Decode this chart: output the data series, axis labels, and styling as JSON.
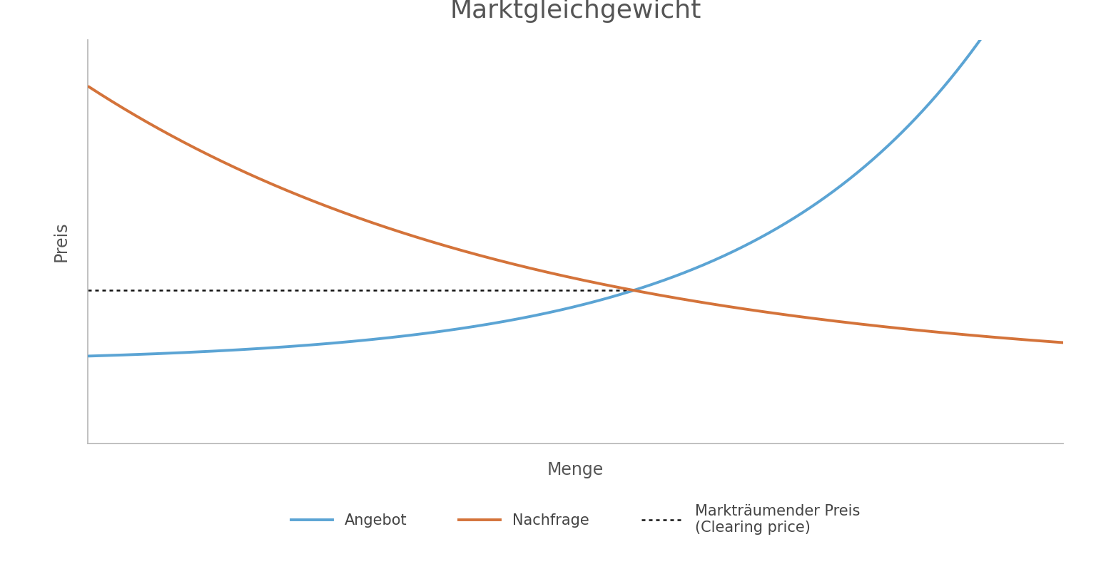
{
  "title": "Marktgleichgewicht",
  "xlabel": "Menge",
  "ylabel": "Preis",
  "supply_color": "#5BA4D4",
  "demand_color": "#D4733A",
  "clearing_color": "#111111",
  "background_color": "#ffffff",
  "spine_color": "#bbbbbb",
  "legend_labels": [
    "Angebot",
    "Nachfrage",
    "Markträumender Preis\n(Clearing price)"
  ],
  "title_fontsize": 26,
  "axis_label_fontsize": 17,
  "legend_fontsize": 15,
  "line_width": 2.8,
  "supply_a": 0.18,
  "supply_b": 0.42,
  "supply_c": 2.1,
  "demand_a": 7.5,
  "demand_b": 0.22,
  "demand_c": 1.8,
  "x_min": 0.0,
  "x_max": 10.0,
  "y_min": 0.0,
  "y_max": 10.5
}
